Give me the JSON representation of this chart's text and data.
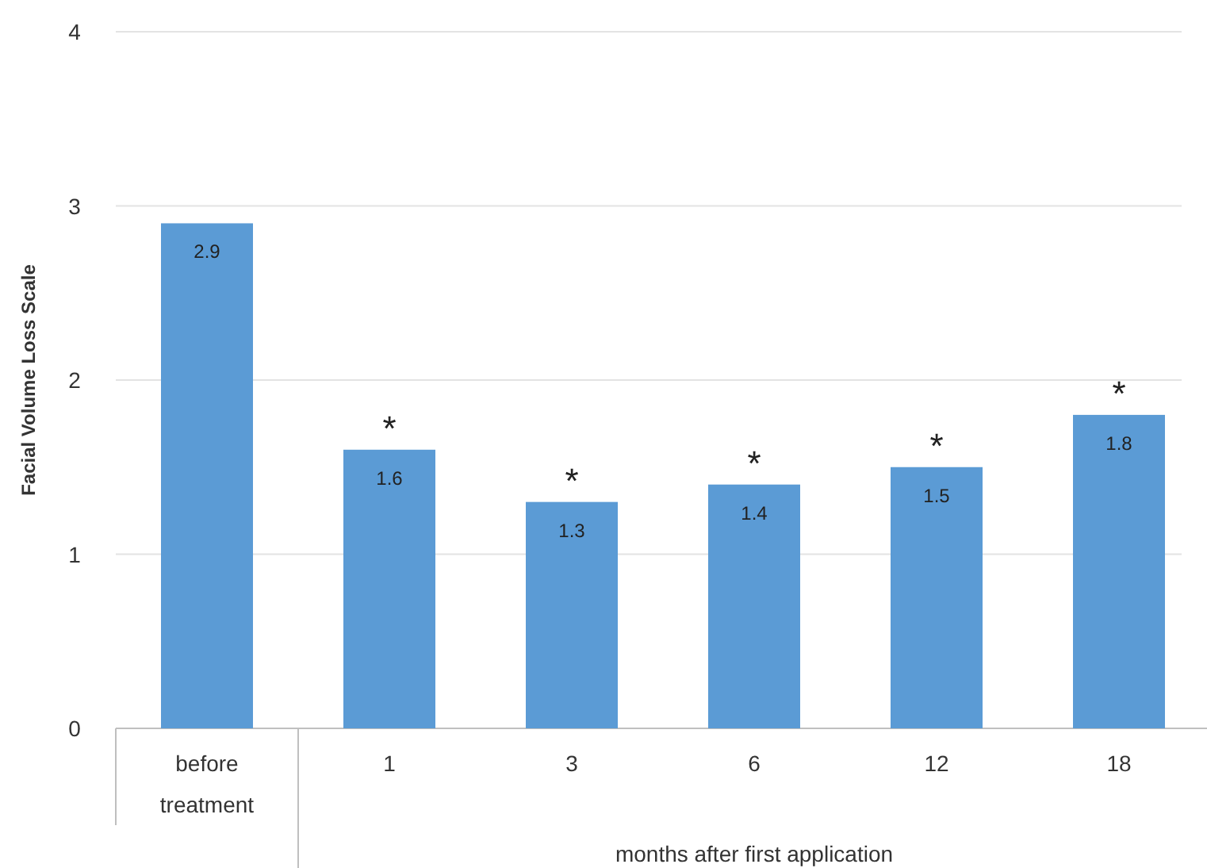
{
  "chart_data": {
    "type": "bar",
    "ylabel": "Facial Volume Loss Scale",
    "xlabel": "months after first application",
    "categories": [
      "before treatment",
      "1",
      "3",
      "6",
      "12",
      "18"
    ],
    "values": [
      2.9,
      1.6,
      1.3,
      1.4,
      1.5,
      1.8
    ],
    "color": "#5b9bd5",
    "data_labels": true,
    "ylim": [
      0,
      4
    ],
    "yticks": [
      0,
      1,
      2,
      3,
      4
    ],
    "grid": "y",
    "annotations": [
      {
        "text": "*",
        "x": "1",
        "y": 1.6
      },
      {
        "text": "*",
        "x": "3",
        "y": 1.3
      },
      {
        "text": "*",
        "x": "6",
        "y": 1.4
      },
      {
        "text": "*",
        "x": "12",
        "y": 1.5
      },
      {
        "text": "*",
        "x": "18",
        "y": 1.8
      }
    ]
  }
}
